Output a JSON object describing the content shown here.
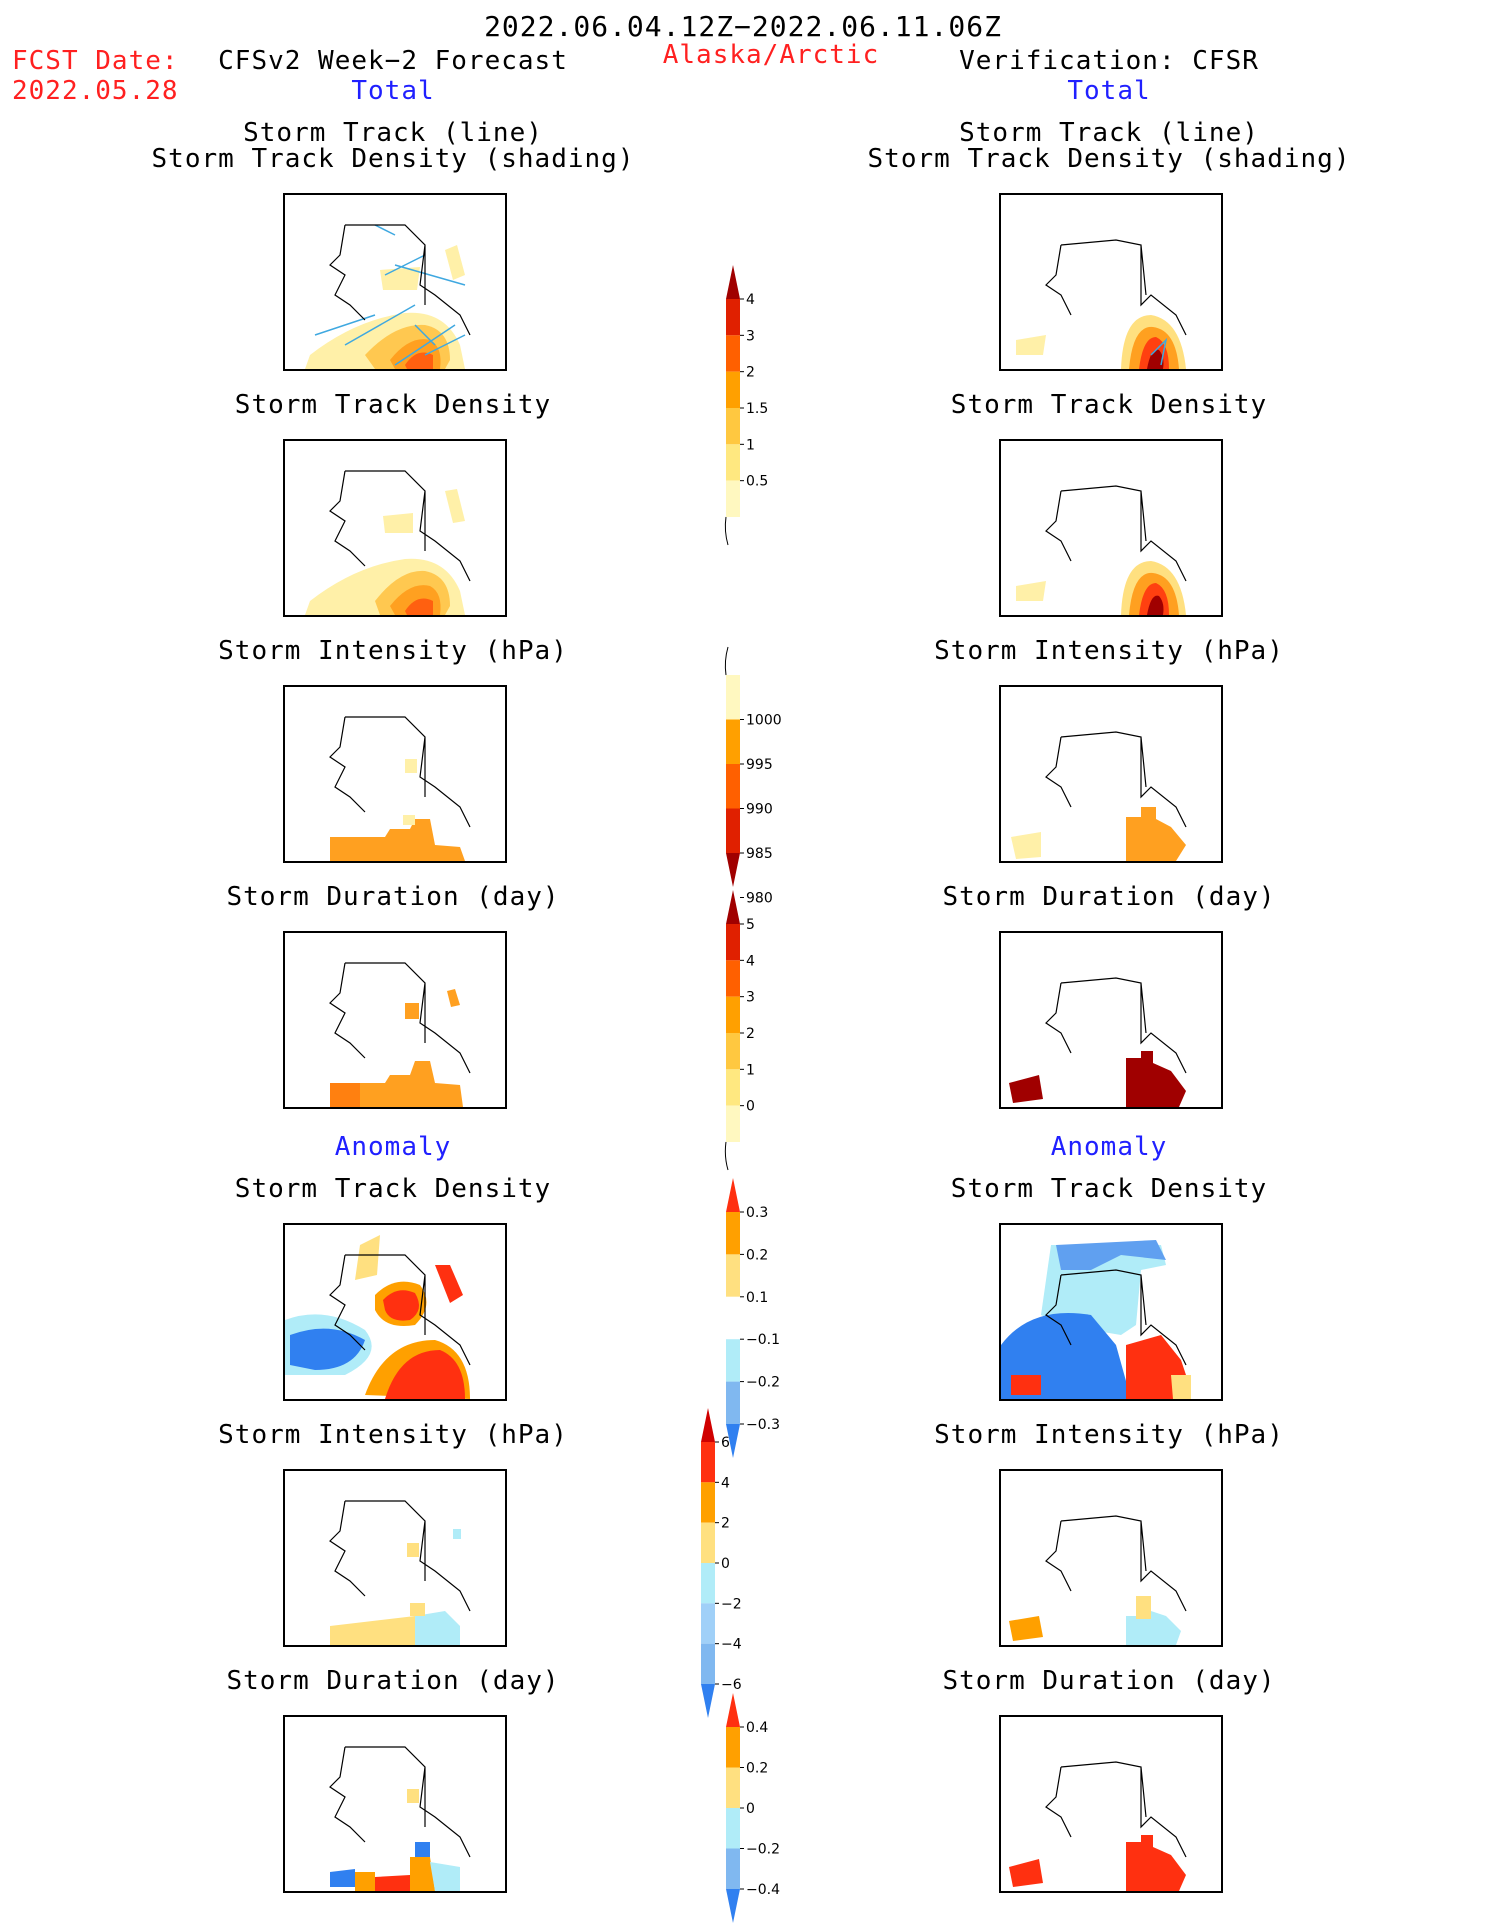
{
  "header": {
    "date_range": "2022.06.04.12Z−2022.06.11.06Z",
    "fcst_label": "FCST Date:",
    "fcst_date": "2022.05.28",
    "left_title": "CFSv2 Week−2 Forecast",
    "region": "Alaska/Arctic",
    "right_title": "Verification: CFSR",
    "left_subtitle": "Total",
    "right_subtitle": "Total"
  },
  "left": {
    "track_line_title": "Storm Track (line)",
    "track_shading_title": "Storm Track Density (shading)",
    "density_title": "Storm Track Density",
    "intensity_title": "Storm Intensity (hPa)",
    "duration_title": "Storm Duration (day)",
    "anomaly_label": "Anomaly",
    "anom_density_title": "Storm Track Density",
    "anom_intensity_title": "Storm Intensity (hPa)",
    "anom_duration_title": "Storm Duration (day)"
  },
  "right": {
    "track_line_title": "Storm Track (line)",
    "track_shading_title": "Storm Track Density (shading)",
    "density_title": "Storm Track Density",
    "intensity_title": "Storm Intensity (hPa)",
    "duration_title": "Storm Duration (day)",
    "anomaly_label": "Anomaly",
    "anom_density_title": "Storm Track Density",
    "anom_intensity_title": "Storm Intensity (hPa)",
    "anom_duration_title": "Storm Duration (day)"
  },
  "colorbars": {
    "density": {
      "ticks": [
        "4",
        "3",
        "2",
        "1.5",
        "1",
        "0.5"
      ],
      "colors": [
        "#a00000",
        "#e02000",
        "#ff6000",
        "#ffa000",
        "#ffc840",
        "#ffe880",
        "#fff8c0"
      ]
    },
    "intensity": {
      "ticks": [
        "1000",
        "995",
        "990",
        "985",
        "980"
      ],
      "colors": [
        "#fff8c0",
        "#ffa000",
        "#ff6000",
        "#e02000",
        "#a00000"
      ]
    },
    "duration": {
      "ticks": [
        "5",
        "4",
        "3",
        "2",
        "1",
        "0"
      ],
      "colors": [
        "#a00000",
        "#e02000",
        "#ff6000",
        "#ffa000",
        "#ffc840",
        "#ffe880",
        "#fff8c0"
      ]
    },
    "anom_density": {
      "ticks": [
        "0.3",
        "0.2",
        "0.1",
        "−0.1",
        "−0.2",
        "−0.3"
      ],
      "colors": [
        "#ff3010",
        "#ffa000",
        "#ffe080",
        "#ffffff",
        "#b0ecf8",
        "#80b8f0",
        "#3080f0"
      ]
    },
    "anom_intensity": {
      "ticks": [
        "6",
        "4",
        "2",
        "0",
        "−2",
        "−4",
        "−6"
      ],
      "colors": [
        "#d00000",
        "#ff3010",
        "#ffa000",
        "#ffe080",
        "#b0ecf8",
        "#a0d0f8",
        "#80b8f0",
        "#3080f0"
      ]
    },
    "anom_duration": {
      "ticks": [
        "0.4",
        "0.2",
        "0",
        "−0.2",
        "−0.4"
      ],
      "colors": [
        "#ff3010",
        "#ffa000",
        "#ffe080",
        "#b0ecf8",
        "#80b8f0",
        "#3080f0"
      ]
    }
  }
}
